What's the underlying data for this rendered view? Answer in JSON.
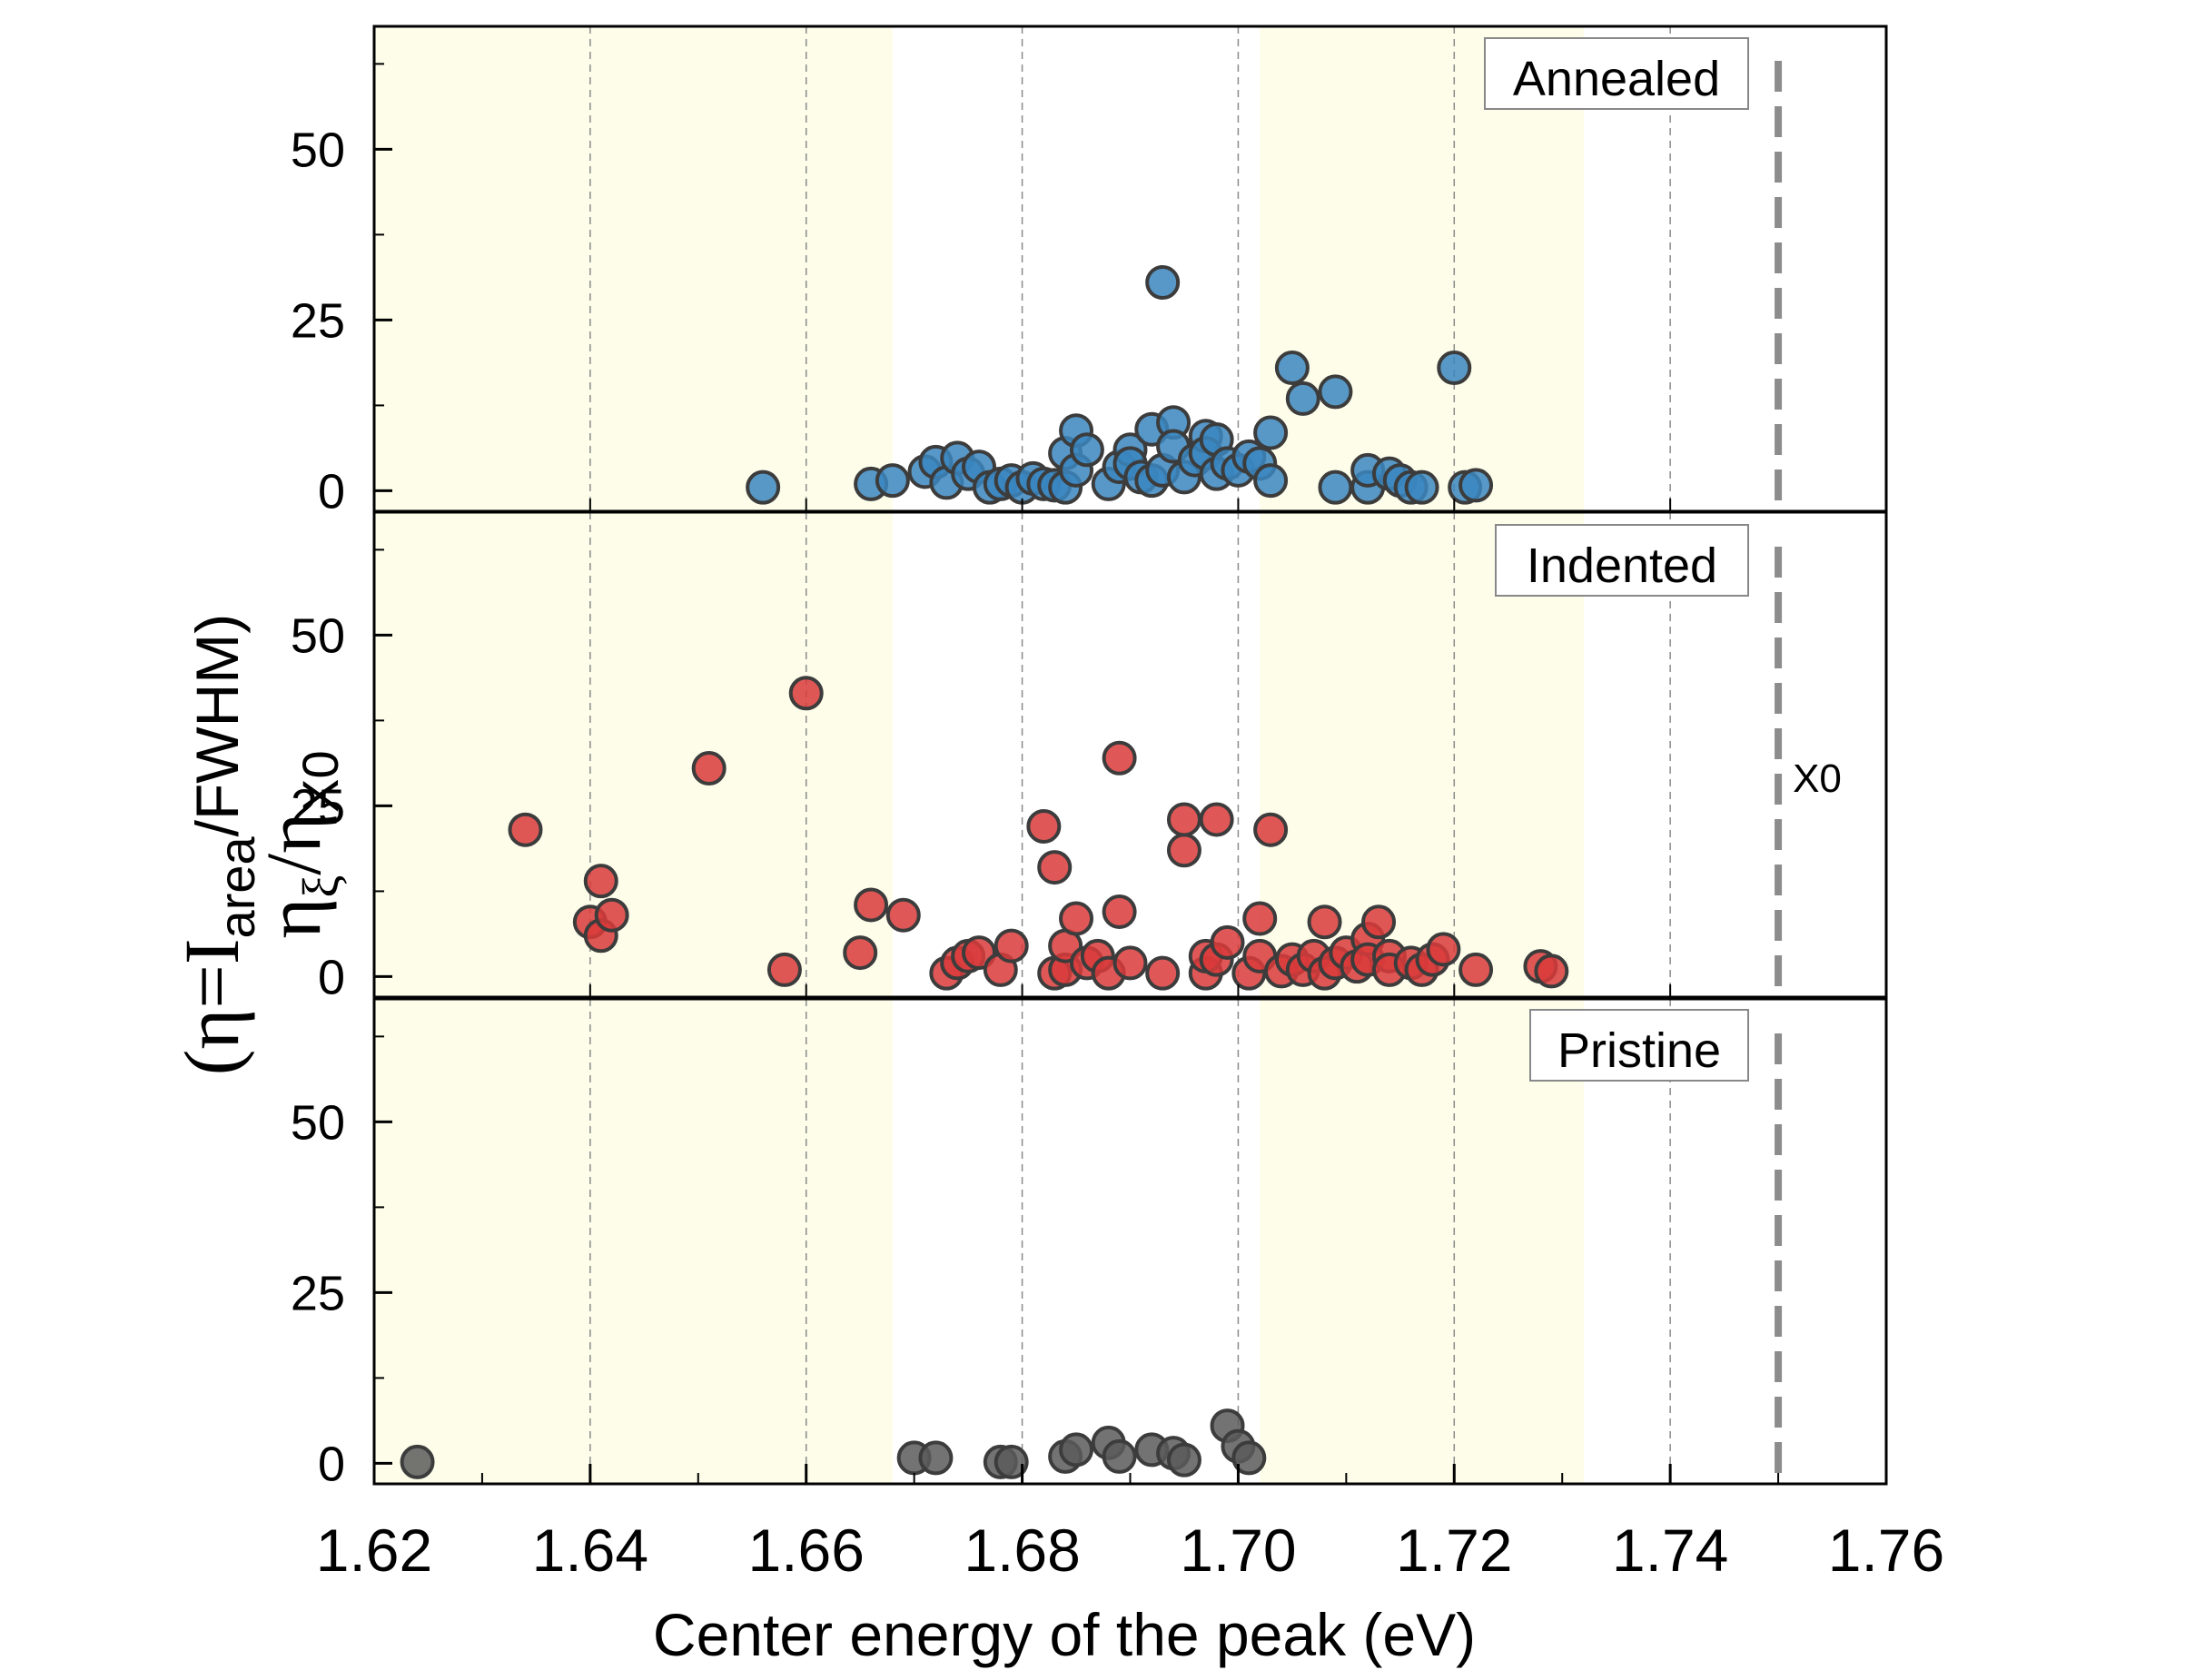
{
  "chart_data": {
    "type": "scatter",
    "xlabel": "Center energy of the peak (eV)",
    "ylabel": {
      "outer": "(η=I",
      "outer_sub": "area",
      "outer_tail": "/FWHM)",
      "inner": "η",
      "inner_sub": "ξ",
      "inner_mid": "/η",
      "inner_sub2": "X0"
    },
    "xlim": [
      1.62,
      1.76
    ],
    "ylim": [
      -3,
      68
    ],
    "x_ticks": [
      1.62,
      1.64,
      1.66,
      1.68,
      1.7,
      1.72,
      1.74,
      1.76
    ],
    "x_tick_labels": [
      "1.62",
      "1.64",
      "1.66",
      "1.68",
      "1.70",
      "1.72",
      "1.74",
      "1.76"
    ],
    "y_ticks": [
      0,
      25,
      50
    ],
    "y_tick_labels": [
      "0",
      "25",
      "50"
    ],
    "grid": "vertical dashed",
    "shaded_regions": [
      [
        1.62,
        1.668
      ],
      [
        1.702,
        1.732
      ]
    ],
    "shade_color": "#fdfdea",
    "reference_line": {
      "x": 1.75,
      "label": "X0",
      "color": "#8c8c8c"
    },
    "series": [
      {
        "name": "Annealed",
        "color": "#1f77b4",
        "fill": "#3a86c0",
        "points": [
          [
            1.656,
            0.5
          ],
          [
            1.666,
            1.0
          ],
          [
            1.668,
            1.5
          ],
          [
            1.671,
            2.8
          ],
          [
            1.672,
            4.2
          ],
          [
            1.673,
            1.2
          ],
          [
            1.674,
            4.8
          ],
          [
            1.675,
            2.5
          ],
          [
            1.676,
            3.5
          ],
          [
            1.677,
            0.5
          ],
          [
            1.678,
            1.0
          ],
          [
            1.679,
            1.5
          ],
          [
            1.68,
            0.5
          ],
          [
            1.681,
            1.8
          ],
          [
            1.682,
            1.0
          ],
          [
            1.683,
            0.8
          ],
          [
            1.684,
            0.5
          ],
          [
            1.684,
            5.5
          ],
          [
            1.685,
            3.0
          ],
          [
            1.685,
            8.8
          ],
          [
            1.686,
            6.0
          ],
          [
            1.688,
            1.0
          ],
          [
            1.689,
            3.5
          ],
          [
            1.69,
            6.0
          ],
          [
            1.69,
            4.0
          ],
          [
            1.691,
            2.0
          ],
          [
            1.692,
            1.5
          ],
          [
            1.692,
            9.0
          ],
          [
            1.693,
            30.5
          ],
          [
            1.693,
            3.0
          ],
          [
            1.694,
            10.0
          ],
          [
            1.694,
            6.5
          ],
          [
            1.695,
            2.0
          ],
          [
            1.696,
            4.5
          ],
          [
            1.697,
            8.0
          ],
          [
            1.697,
            5.5
          ],
          [
            1.698,
            7.5
          ],
          [
            1.698,
            2.5
          ],
          [
            1.699,
            4.0
          ],
          [
            1.7,
            3.0
          ],
          [
            1.701,
            5.0
          ],
          [
            1.702,
            4.0
          ],
          [
            1.703,
            1.5
          ],
          [
            1.703,
            8.5
          ],
          [
            1.705,
            18.0
          ],
          [
            1.706,
            13.5
          ],
          [
            1.709,
            14.5
          ],
          [
            1.709,
            0.5
          ],
          [
            1.712,
            0.5
          ],
          [
            1.712,
            3.0
          ],
          [
            1.714,
            2.5
          ],
          [
            1.715,
            1.5
          ],
          [
            1.716,
            0.5
          ],
          [
            1.717,
            0.5
          ],
          [
            1.72,
            18.0
          ],
          [
            1.721,
            0.5
          ],
          [
            1.722,
            0.8
          ]
        ]
      },
      {
        "name": "Indented",
        "color": "#d62728",
        "fill": "#d93a3a",
        "points": [
          [
            1.634,
            21.5
          ],
          [
            1.64,
            8.0
          ],
          [
            1.641,
            6.0
          ],
          [
            1.641,
            14.0
          ],
          [
            1.642,
            9.0
          ],
          [
            1.651,
            30.5
          ],
          [
            1.658,
            1.0
          ],
          [
            1.66,
            41.5
          ],
          [
            1.665,
            3.5
          ],
          [
            1.666,
            10.5
          ],
          [
            1.669,
            9.0
          ],
          [
            1.673,
            0.5
          ],
          [
            1.674,
            2.0
          ],
          [
            1.675,
            3.0
          ],
          [
            1.676,
            3.5
          ],
          [
            1.678,
            1.0
          ],
          [
            1.679,
            4.5
          ],
          [
            1.682,
            22.0
          ],
          [
            1.683,
            16.0
          ],
          [
            1.683,
            0.5
          ],
          [
            1.684,
            1.0
          ],
          [
            1.684,
            4.5
          ],
          [
            1.685,
            8.5
          ],
          [
            1.686,
            2.0
          ],
          [
            1.687,
            3.0
          ],
          [
            1.688,
            0.5
          ],
          [
            1.689,
            32.0
          ],
          [
            1.689,
            9.5
          ],
          [
            1.69,
            2.0
          ],
          [
            1.693,
            0.5
          ],
          [
            1.695,
            18.5
          ],
          [
            1.695,
            23.0
          ],
          [
            1.697,
            0.5
          ],
          [
            1.697,
            3.0
          ],
          [
            1.698,
            23.0
          ],
          [
            1.698,
            2.5
          ],
          [
            1.699,
            5.0
          ],
          [
            1.701,
            0.5
          ],
          [
            1.702,
            3.0
          ],
          [
            1.702,
            8.5
          ],
          [
            1.703,
            21.5
          ],
          [
            1.704,
            0.8
          ],
          [
            1.705,
            2.5
          ],
          [
            1.706,
            1.0
          ],
          [
            1.707,
            3.0
          ],
          [
            1.708,
            0.5
          ],
          [
            1.708,
            8.0
          ],
          [
            1.709,
            2.0
          ],
          [
            1.71,
            3.5
          ],
          [
            1.711,
            1.5
          ],
          [
            1.712,
            5.5
          ],
          [
            1.712,
            2.5
          ],
          [
            1.713,
            8.0
          ],
          [
            1.714,
            3.0
          ],
          [
            1.714,
            1.0
          ],
          [
            1.716,
            2.0
          ],
          [
            1.717,
            1.0
          ],
          [
            1.718,
            2.5
          ],
          [
            1.719,
            4.0
          ],
          [
            1.722,
            1.0
          ],
          [
            1.728,
            1.5
          ],
          [
            1.729,
            0.8
          ]
        ]
      },
      {
        "name": "Pristine",
        "color": "#404040",
        "fill": "#5a5a5a",
        "points": [
          [
            1.624,
            0.2
          ],
          [
            1.67,
            0.8
          ],
          [
            1.672,
            0.8
          ],
          [
            1.678,
            0.2
          ],
          [
            1.679,
            0.2
          ],
          [
            1.684,
            1.0
          ],
          [
            1.685,
            2.0
          ],
          [
            1.688,
            3.0
          ],
          [
            1.689,
            1.0
          ],
          [
            1.692,
            2.0
          ],
          [
            1.694,
            1.5
          ],
          [
            1.695,
            0.5
          ],
          [
            1.699,
            5.5
          ],
          [
            1.7,
            2.5
          ],
          [
            1.701,
            0.8
          ]
        ]
      }
    ]
  }
}
